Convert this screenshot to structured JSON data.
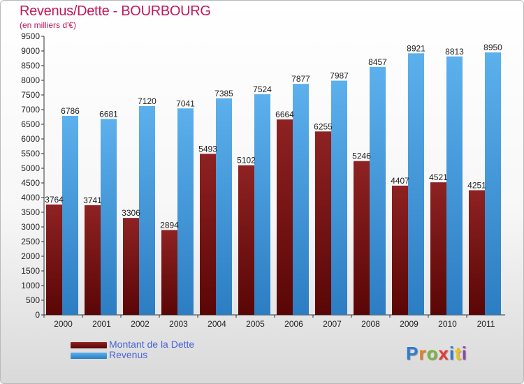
{
  "title": "Revenus/Dette - BOURBOURG",
  "subtitle": "(en milliers d'€)",
  "logo": {
    "text": "Proxiti",
    "letter_colors": [
      "#2e7bd3",
      "#e67e22",
      "#7cb342",
      "#e53935",
      "#2e7bd3",
      "#f1c40f",
      "#8e44ad"
    ]
  },
  "colors": {
    "dette": "#7b1a1a",
    "revenus": "#4a9fe0",
    "title": "#c2185b",
    "legend_text": "#4a63d8"
  },
  "chart_data": {
    "type": "bar",
    "title": "Revenus/Dette - BOURBOURG",
    "subtitle": "(en milliers d'€)",
    "xlabel": "",
    "ylabel": "",
    "categories": [
      "2000",
      "2001",
      "2002",
      "2003",
      "2004",
      "2005",
      "2006",
      "2007",
      "2008",
      "2009",
      "2010",
      "2011"
    ],
    "series": [
      {
        "name": "Montant de la Dette",
        "color": "#7b1a1a",
        "values": [
          3764,
          3741,
          3306,
          2894,
          5493,
          5102,
          6664,
          6255,
          5246,
          4407,
          4521,
          4251
        ],
        "labels": [
          "3764",
          "3741",
          "3306",
          "2894",
          "5493",
          "5102",
          "6664",
          "6255",
          "5246",
          "4407",
          "4521",
          "4251"
        ]
      },
      {
        "name": "Revenus",
        "color": "#4a9fe0",
        "values": [
          6786,
          6681,
          7120,
          7041,
          7385,
          7524,
          7877,
          7987,
          8457,
          8921,
          8813,
          8950
        ],
        "labels": [
          "6786",
          "6681",
          "7120",
          "7041",
          "7385",
          "7524",
          "7877",
          "7987",
          "8457",
          "8921",
          "8813",
          "8950"
        ]
      }
    ],
    "ylim": [
      0,
      9500
    ],
    "yticks": [
      0,
      500,
      1000,
      1500,
      2000,
      2500,
      3000,
      3500,
      4000,
      4500,
      5000,
      5500,
      6000,
      6500,
      7000,
      7500,
      8000,
      8500,
      9000,
      9500
    ],
    "grid": false,
    "legend": "bottom-left"
  }
}
